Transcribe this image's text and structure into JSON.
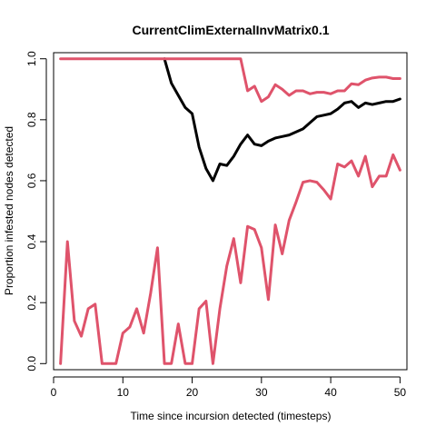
{
  "chart_data": {
    "type": "line",
    "title": "CurrentClimExternalInvMatrix0.1",
    "xlabel": "Time since incursion detected (timesteps)",
    "ylabel": "Proportion infested nodes detected",
    "xlim": [
      0,
      51
    ],
    "ylim": [
      -0.02,
      1.02
    ],
    "x_ticks": [
      0,
      10,
      20,
      30,
      40,
      50
    ],
    "y_ticks": [
      0.0,
      0.2,
      0.4,
      0.6,
      0.8,
      1.0
    ],
    "x_tick_labels": [
      "0",
      "10",
      "20",
      "30",
      "40",
      "50"
    ],
    "y_tick_labels": [
      "0.0",
      "0.2",
      "0.4",
      "0.6",
      "0.8",
      "1.0"
    ],
    "grid": false,
    "series": [
      {
        "color": "#000000",
        "line_width": 3,
        "x": [
          16,
          17,
          18,
          19,
          20,
          21,
          22,
          23,
          24,
          25,
          26,
          27,
          28,
          29,
          30,
          31,
          32,
          33,
          34,
          35,
          36,
          37,
          38,
          39,
          40,
          41,
          42,
          43,
          44,
          45,
          46,
          47,
          48,
          49,
          50
        ],
        "values": [
          1.0,
          0.92,
          0.88,
          0.84,
          0.82,
          0.71,
          0.64,
          0.6,
          0.655,
          0.65,
          0.68,
          0.72,
          0.75,
          0.72,
          0.715,
          0.73,
          0.74,
          0.745,
          0.75,
          0.76,
          0.77,
          0.79,
          0.81,
          0.815,
          0.82,
          0.835,
          0.855,
          0.86,
          0.84,
          0.855,
          0.85,
          0.855,
          0.86,
          0.86,
          0.868
        ]
      },
      {
        "color": "#DF536B",
        "line_width": 3,
        "x": [
          1,
          2,
          3,
          4,
          5,
          6,
          7,
          8,
          9,
          10,
          11,
          12,
          13,
          14,
          15,
          16,
          17,
          18,
          19,
          20,
          21,
          22,
          23,
          24,
          25,
          26,
          27,
          28,
          29,
          30,
          31,
          32,
          33,
          34,
          35,
          36,
          37,
          38,
          39,
          40,
          41,
          42,
          43,
          44,
          45,
          46,
          47,
          48,
          49,
          50
        ],
        "values": [
          1.0,
          1.0,
          1.0,
          1.0,
          1.0,
          1.0,
          1.0,
          1.0,
          1.0,
          1.0,
          1.0,
          1.0,
          1.0,
          1.0,
          1.0,
          1.0,
          1.0,
          1.0,
          1.0,
          1.0,
          1.0,
          1.0,
          1.0,
          1.0,
          1.0,
          1.0,
          1.0,
          0.895,
          0.91,
          0.86,
          0.875,
          0.915,
          0.9,
          0.88,
          0.895,
          0.895,
          0.885,
          0.89,
          0.89,
          0.885,
          0.895,
          0.895,
          0.918,
          0.915,
          0.93,
          0.937,
          0.94,
          0.94,
          0.935,
          0.935
        ]
      },
      {
        "color": "#DF536B",
        "line_width": 3,
        "x": [
          1,
          2,
          3,
          4,
          5,
          6,
          7,
          8,
          9,
          10,
          11,
          12,
          13,
          14,
          15,
          16,
          17,
          18,
          19,
          20,
          21,
          22,
          23,
          24,
          25,
          26,
          27,
          28,
          29,
          30,
          31,
          32,
          33,
          34,
          35,
          36,
          37,
          38,
          39,
          40,
          41,
          42,
          43,
          44,
          45,
          46,
          47,
          48,
          49,
          50
        ],
        "values": [
          0.0,
          0.4,
          0.14,
          0.09,
          0.18,
          0.195,
          0.0,
          0.0,
          0.0,
          0.1,
          0.12,
          0.18,
          0.1,
          0.23,
          0.38,
          0.0,
          0.0,
          0.13,
          0.0,
          0.0,
          0.18,
          0.205,
          0.0,
          0.18,
          0.32,
          0.41,
          0.265,
          0.45,
          0.44,
          0.38,
          0.21,
          0.455,
          0.36,
          0.47,
          0.53,
          0.595,
          0.6,
          0.595,
          0.57,
          0.54,
          0.655,
          0.645,
          0.665,
          0.615,
          0.68,
          0.58,
          0.615,
          0.615,
          0.685,
          0.635
        ]
      }
    ]
  }
}
